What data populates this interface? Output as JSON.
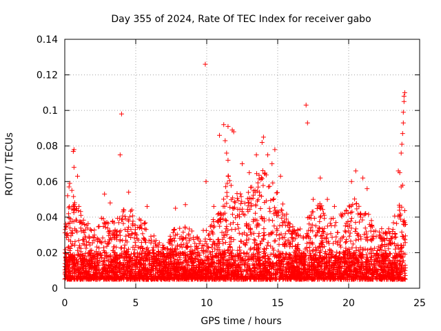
{
  "chart_data": {
    "type": "scatter",
    "title": "Day 355 of 2024, Rate Of TEC Index for receiver gabo",
    "xlabel": "GPS time / hours",
    "ylabel": "ROTI / TECUs",
    "xlim": [
      0,
      25
    ],
    "ylim": [
      0,
      0.14
    ],
    "grid": true,
    "marker": "+",
    "marker_color": "#ff0000",
    "x_ticks": [
      0,
      5,
      10,
      15,
      20,
      25
    ],
    "x_tick_labels": [
      "0",
      "5",
      "10",
      "15",
      "20",
      "25"
    ],
    "y_ticks": [
      0,
      0.02,
      0.04,
      0.06,
      0.08,
      0.1,
      0.12,
      0.14
    ],
    "y_tick_labels": [
      "0",
      "0.02",
      "0.04",
      "0.06",
      "0.08",
      "0.1",
      "0.12",
      "0.14"
    ],
    "series": [
      {
        "name": "ROTI",
        "points": [
          [
            0.2,
            0.052
          ],
          [
            0.3,
            0.057
          ],
          [
            0.35,
            0.059
          ],
          [
            0.5,
            0.055
          ],
          [
            0.6,
            0.077
          ],
          [
            0.65,
            0.078
          ],
          [
            0.65,
            0.068
          ],
          [
            0.9,
            0.063
          ],
          [
            1.0,
            0.046
          ],
          [
            2.8,
            0.053
          ],
          [
            3.2,
            0.048
          ],
          [
            3.9,
            0.075
          ],
          [
            4.0,
            0.098
          ],
          [
            4.5,
            0.054
          ],
          [
            5.8,
            0.046
          ],
          [
            7.8,
            0.045
          ],
          [
            8.5,
            0.047
          ],
          [
            9.9,
            0.126
          ],
          [
            9.95,
            0.06
          ],
          [
            10.5,
            0.046
          ],
          [
            10.9,
            0.086
          ],
          [
            11.2,
            0.092
          ],
          [
            11.3,
            0.083
          ],
          [
            11.4,
            0.076
          ],
          [
            11.5,
            0.091
          ],
          [
            11.8,
            0.089
          ],
          [
            11.9,
            0.088
          ],
          [
            11.5,
            0.072
          ],
          [
            12.5,
            0.07
          ],
          [
            13.0,
            0.065
          ],
          [
            13.5,
            0.075
          ],
          [
            13.9,
            0.082
          ],
          [
            14.0,
            0.085
          ],
          [
            14.3,
            0.075
          ],
          [
            14.6,
            0.07
          ],
          [
            14.8,
            0.078
          ],
          [
            15.2,
            0.063
          ],
          [
            17.0,
            0.103
          ],
          [
            17.1,
            0.093
          ],
          [
            17.5,
            0.05
          ],
          [
            18.0,
            0.062
          ],
          [
            18.5,
            0.05
          ],
          [
            19.0,
            0.046
          ],
          [
            20.2,
            0.06
          ],
          [
            20.5,
            0.066
          ],
          [
            21.0,
            0.062
          ],
          [
            21.3,
            0.056
          ],
          [
            23.5,
            0.066
          ],
          [
            23.6,
            0.065
          ],
          [
            23.7,
            0.076
          ],
          [
            23.75,
            0.081
          ],
          [
            23.8,
            0.087
          ],
          [
            23.85,
            0.093
          ],
          [
            23.85,
            0.099
          ],
          [
            23.9,
            0.105
          ],
          [
            23.9,
            0.108
          ],
          [
            23.95,
            0.11
          ],
          [
            23.7,
            0.057
          ],
          [
            23.8,
            0.058
          ]
        ]
      }
    ]
  }
}
